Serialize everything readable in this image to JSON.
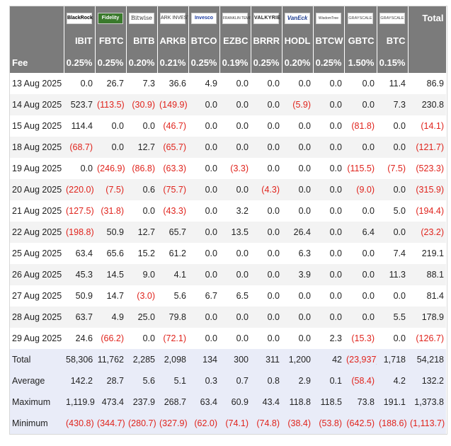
{
  "header": {
    "total_label": "Total",
    "fee_label": "Fee",
    "issuers": [
      {
        "logo_text": "BlackRock",
        "icon": "blackrock-logo",
        "ticker": "IBIT",
        "fee": "0.25%"
      },
      {
        "logo_text": "Fidelity",
        "icon": "fidelity-logo",
        "ticker": "FBTC",
        "fee": "0.25%"
      },
      {
        "logo_text": "Bitwise",
        "icon": "bitwise-logo",
        "ticker": "BITB",
        "fee": "0.20%"
      },
      {
        "logo_text": "ARK INVEST",
        "icon": "ark-logo",
        "ticker": "ARKB",
        "fee": "0.21%"
      },
      {
        "logo_text": "Invesco",
        "icon": "invesco-logo",
        "ticker": "BTCO",
        "fee": "0.25%"
      },
      {
        "logo_text": "FRANKLIN TEMPLETON",
        "icon": "franklin-templeton-logo",
        "ticker": "EZBC",
        "fee": "0.19%"
      },
      {
        "logo_text": "VALKYRIE",
        "icon": "valkyrie-logo",
        "ticker": "BRRR",
        "fee": "0.25%"
      },
      {
        "logo_text": "VanEck",
        "icon": "vaneck-logo",
        "ticker": "HODL",
        "fee": "0.20%"
      },
      {
        "logo_text": "WisdomTree",
        "icon": "wisdomtree-logo",
        "ticker": "BTCW",
        "fee": "0.25%"
      },
      {
        "logo_text": "GRAYSCALE",
        "icon": "grayscale-logo",
        "ticker": "GBTC",
        "fee": "1.50%"
      },
      {
        "logo_text": "GRAYSCALE",
        "icon": "grayscale-logo",
        "ticker": "BTC",
        "fee": "0.15%"
      }
    ]
  },
  "rows": [
    {
      "date": "13 Aug 2025",
      "values": [
        "0.0",
        "26.7",
        "7.3",
        "36.6",
        "4.9",
        "0.0",
        "0.0",
        "0.0",
        "0.0",
        "0.0",
        "11.4"
      ],
      "total": "86.9"
    },
    {
      "date": "14 Aug 2025",
      "values": [
        "523.7",
        "(113.5)",
        "(30.9)",
        "(149.9)",
        "0.0",
        "0.0",
        "0.0",
        "(5.9)",
        "0.0",
        "0.0",
        "7.3"
      ],
      "total": "230.8"
    },
    {
      "date": "15 Aug 2025",
      "values": [
        "114.4",
        "0.0",
        "0.0",
        "(46.7)",
        "0.0",
        "0.0",
        "0.0",
        "0.0",
        "0.0",
        "(81.8)",
        "0.0"
      ],
      "total": "(14.1)"
    },
    {
      "date": "18 Aug 2025",
      "values": [
        "(68.7)",
        "0.0",
        "12.7",
        "(65.7)",
        "0.0",
        "0.0",
        "0.0",
        "0.0",
        "0.0",
        "0.0",
        "0.0"
      ],
      "total": "(121.7)"
    },
    {
      "date": "19 Aug 2025",
      "values": [
        "0.0",
        "(246.9)",
        "(86.8)",
        "(63.3)",
        "0.0",
        "(3.3)",
        "0.0",
        "0.0",
        "0.0",
        "(115.5)",
        "(7.5)"
      ],
      "total": "(523.3)"
    },
    {
      "date": "20 Aug 2025",
      "values": [
        "(220.0)",
        "(7.5)",
        "0.6",
        "(75.7)",
        "0.0",
        "0.0",
        "(4.3)",
        "0.0",
        "0.0",
        "(9.0)",
        "0.0"
      ],
      "total": "(315.9)"
    },
    {
      "date": "21 Aug 2025",
      "values": [
        "(127.5)",
        "(31.8)",
        "0.0",
        "(43.3)",
        "0.0",
        "3.2",
        "0.0",
        "0.0",
        "0.0",
        "0.0",
        "5.0"
      ],
      "total": "(194.4)"
    },
    {
      "date": "22 Aug 2025",
      "values": [
        "(198.8)",
        "50.9",
        "12.7",
        "65.7",
        "0.0",
        "13.5",
        "0.0",
        "26.4",
        "0.0",
        "6.4",
        "0.0"
      ],
      "total": "(23.2)"
    },
    {
      "date": "25 Aug 2025",
      "values": [
        "63.4",
        "65.6",
        "15.2",
        "61.2",
        "0.0",
        "0.0",
        "0.0",
        "6.3",
        "0.0",
        "0.0",
        "7.4"
      ],
      "total": "219.1"
    },
    {
      "date": "26 Aug 2025",
      "values": [
        "45.3",
        "14.5",
        "9.0",
        "4.1",
        "0.0",
        "0.0",
        "0.0",
        "3.9",
        "0.0",
        "0.0",
        "11.3"
      ],
      "total": "88.1"
    },
    {
      "date": "27 Aug 2025",
      "values": [
        "50.9",
        "14.7",
        "(3.0)",
        "5.6",
        "6.7",
        "6.5",
        "0.0",
        "0.0",
        "0.0",
        "0.0",
        "0.0"
      ],
      "total": "81.4"
    },
    {
      "date": "28 Aug 2025",
      "values": [
        "63.7",
        "4.9",
        "25.0",
        "79.8",
        "0.0",
        "0.0",
        "0.0",
        "0.0",
        "0.0",
        "0.0",
        "5.5"
      ],
      "total": "178.9"
    },
    {
      "date": "29 Aug 2025",
      "values": [
        "24.6",
        "(66.2)",
        "0.0",
        "(72.1)",
        "0.0",
        "0.0",
        "0.0",
        "0.0",
        "2.3",
        "(15.3)",
        "0.0"
      ],
      "total": "(126.7)"
    }
  ],
  "summary": [
    {
      "label": "Total",
      "values": [
        "58,306",
        "11,762",
        "2,285",
        "2,098",
        "134",
        "300",
        "311",
        "1,200",
        "42",
        "(23,937)",
        "1,718"
      ],
      "total": "54,218"
    },
    {
      "label": "Average",
      "values": [
        "142.2",
        "28.7",
        "5.6",
        "5.1",
        "0.3",
        "0.7",
        "0.8",
        "2.9",
        "0.1",
        "(58.4)",
        "4.2"
      ],
      "total": "132.2"
    },
    {
      "label": "Maximum",
      "values": [
        "1,119.9",
        "473.4",
        "237.9",
        "268.7",
        "63.4",
        "60.9",
        "43.4",
        "118.8",
        "118.5",
        "73.8",
        "191.1"
      ],
      "total": "1,373.8"
    },
    {
      "label": "Minimum",
      "values": [
        "(430.8)",
        "(344.7)",
        "(280.7)",
        "(327.9)",
        "(62.0)",
        "(74.1)",
        "(74.8)",
        "(38.4)",
        "(53.8)",
        "(642.5)",
        "(188.6)"
      ],
      "total": "(1,113.7)"
    }
  ],
  "colors": {
    "header_bg": "#7b7b7b",
    "negative": "#e0231c",
    "summary_bg": "#e9ecf8",
    "stripe": "#f3f3f3"
  }
}
